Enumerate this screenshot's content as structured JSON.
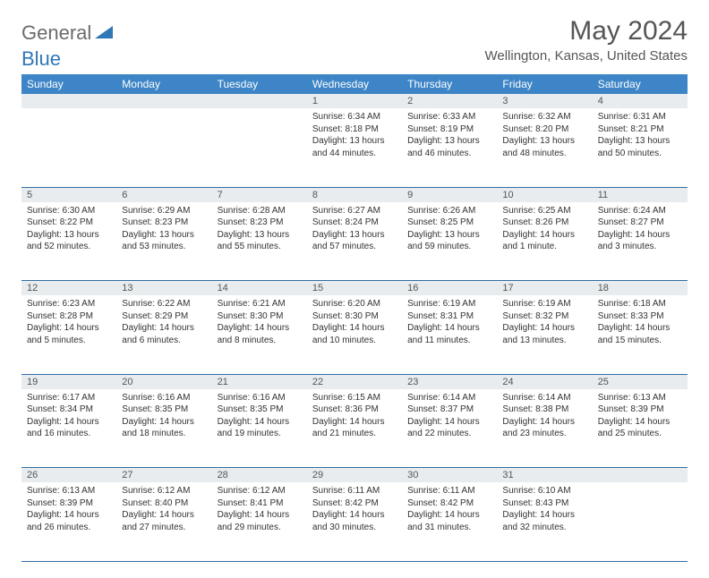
{
  "brand": {
    "part1": "General",
    "part2": "Blue"
  },
  "title": "May 2024",
  "location": "Wellington, Kansas, United States",
  "colors": {
    "header_bg": "#3d85c6",
    "daynum_bg": "#e8ecef",
    "rule": "#2f6da3",
    "logo_blue": "#2f77b5",
    "logo_gray": "#6b6b6b"
  },
  "weekdays": [
    "Sunday",
    "Monday",
    "Tuesday",
    "Wednesday",
    "Thursday",
    "Friday",
    "Saturday"
  ],
  "weeks": [
    [
      null,
      null,
      null,
      {
        "n": "1",
        "sr": "6:34 AM",
        "ss": "8:18 PM",
        "dl": "13 hours and 44 minutes."
      },
      {
        "n": "2",
        "sr": "6:33 AM",
        "ss": "8:19 PM",
        "dl": "13 hours and 46 minutes."
      },
      {
        "n": "3",
        "sr": "6:32 AM",
        "ss": "8:20 PM",
        "dl": "13 hours and 48 minutes."
      },
      {
        "n": "4",
        "sr": "6:31 AM",
        "ss": "8:21 PM",
        "dl": "13 hours and 50 minutes."
      }
    ],
    [
      {
        "n": "5",
        "sr": "6:30 AM",
        "ss": "8:22 PM",
        "dl": "13 hours and 52 minutes."
      },
      {
        "n": "6",
        "sr": "6:29 AM",
        "ss": "8:23 PM",
        "dl": "13 hours and 53 minutes."
      },
      {
        "n": "7",
        "sr": "6:28 AM",
        "ss": "8:23 PM",
        "dl": "13 hours and 55 minutes."
      },
      {
        "n": "8",
        "sr": "6:27 AM",
        "ss": "8:24 PM",
        "dl": "13 hours and 57 minutes."
      },
      {
        "n": "9",
        "sr": "6:26 AM",
        "ss": "8:25 PM",
        "dl": "13 hours and 59 minutes."
      },
      {
        "n": "10",
        "sr": "6:25 AM",
        "ss": "8:26 PM",
        "dl": "14 hours and 1 minute."
      },
      {
        "n": "11",
        "sr": "6:24 AM",
        "ss": "8:27 PM",
        "dl": "14 hours and 3 minutes."
      }
    ],
    [
      {
        "n": "12",
        "sr": "6:23 AM",
        "ss": "8:28 PM",
        "dl": "14 hours and 5 minutes."
      },
      {
        "n": "13",
        "sr": "6:22 AM",
        "ss": "8:29 PM",
        "dl": "14 hours and 6 minutes."
      },
      {
        "n": "14",
        "sr": "6:21 AM",
        "ss": "8:30 PM",
        "dl": "14 hours and 8 minutes."
      },
      {
        "n": "15",
        "sr": "6:20 AM",
        "ss": "8:30 PM",
        "dl": "14 hours and 10 minutes."
      },
      {
        "n": "16",
        "sr": "6:19 AM",
        "ss": "8:31 PM",
        "dl": "14 hours and 11 minutes."
      },
      {
        "n": "17",
        "sr": "6:19 AM",
        "ss": "8:32 PM",
        "dl": "14 hours and 13 minutes."
      },
      {
        "n": "18",
        "sr": "6:18 AM",
        "ss": "8:33 PM",
        "dl": "14 hours and 15 minutes."
      }
    ],
    [
      {
        "n": "19",
        "sr": "6:17 AM",
        "ss": "8:34 PM",
        "dl": "14 hours and 16 minutes."
      },
      {
        "n": "20",
        "sr": "6:16 AM",
        "ss": "8:35 PM",
        "dl": "14 hours and 18 minutes."
      },
      {
        "n": "21",
        "sr": "6:16 AM",
        "ss": "8:35 PM",
        "dl": "14 hours and 19 minutes."
      },
      {
        "n": "22",
        "sr": "6:15 AM",
        "ss": "8:36 PM",
        "dl": "14 hours and 21 minutes."
      },
      {
        "n": "23",
        "sr": "6:14 AM",
        "ss": "8:37 PM",
        "dl": "14 hours and 22 minutes."
      },
      {
        "n": "24",
        "sr": "6:14 AM",
        "ss": "8:38 PM",
        "dl": "14 hours and 23 minutes."
      },
      {
        "n": "25",
        "sr": "6:13 AM",
        "ss": "8:39 PM",
        "dl": "14 hours and 25 minutes."
      }
    ],
    [
      {
        "n": "26",
        "sr": "6:13 AM",
        "ss": "8:39 PM",
        "dl": "14 hours and 26 minutes."
      },
      {
        "n": "27",
        "sr": "6:12 AM",
        "ss": "8:40 PM",
        "dl": "14 hours and 27 minutes."
      },
      {
        "n": "28",
        "sr": "6:12 AM",
        "ss": "8:41 PM",
        "dl": "14 hours and 29 minutes."
      },
      {
        "n": "29",
        "sr": "6:11 AM",
        "ss": "8:42 PM",
        "dl": "14 hours and 30 minutes."
      },
      {
        "n": "30",
        "sr": "6:11 AM",
        "ss": "8:42 PM",
        "dl": "14 hours and 31 minutes."
      },
      {
        "n": "31",
        "sr": "6:10 AM",
        "ss": "8:43 PM",
        "dl": "14 hours and 32 minutes."
      },
      null
    ]
  ],
  "labels": {
    "sunrise": "Sunrise:",
    "sunset": "Sunset:",
    "daylight": "Daylight:"
  }
}
